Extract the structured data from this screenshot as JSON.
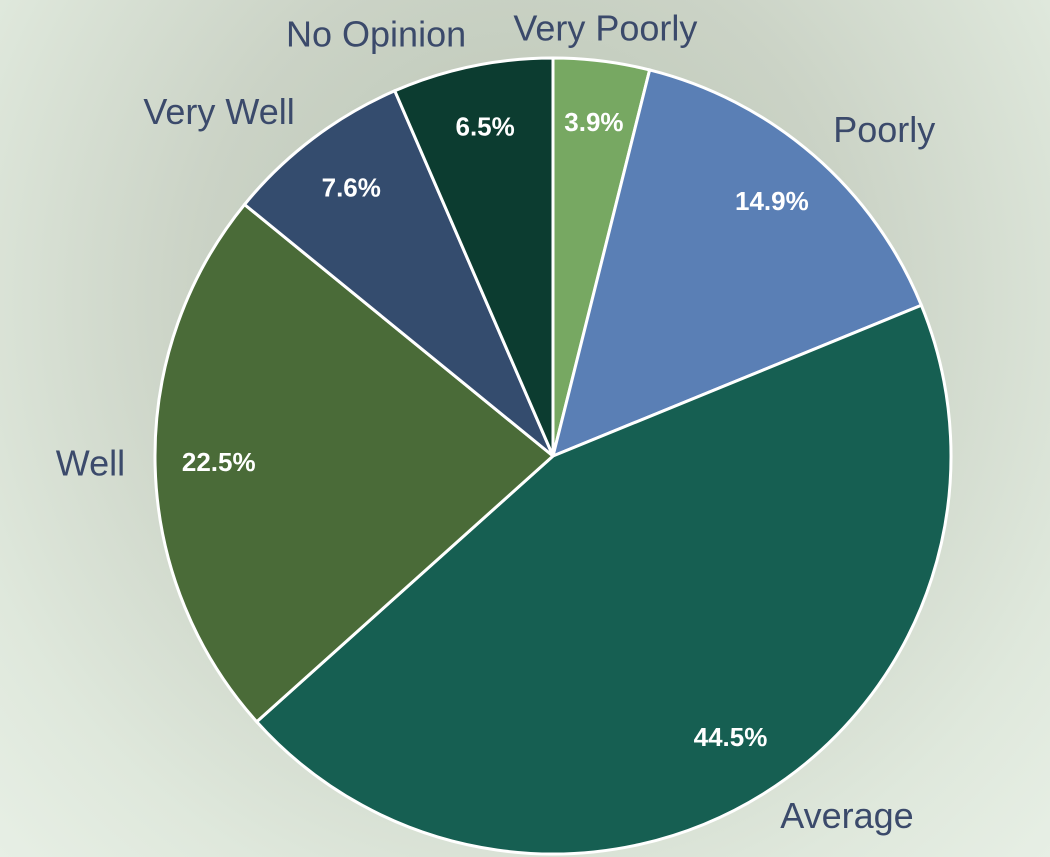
{
  "chart_data": {
    "type": "pie",
    "categories": [
      "Very Poorly",
      "Poorly",
      "Average",
      "Well",
      "Very Well",
      "No Opinion"
    ],
    "values": [
      3.9,
      14.9,
      44.5,
      22.5,
      7.6,
      6.5
    ],
    "value_labels": [
      "3.9%",
      "14.9%",
      "44.5%",
      "22.5%",
      "7.6%",
      "6.5%"
    ],
    "colors": [
      "#77a862",
      "#5a7fb5",
      "#165f52",
      "#4a6b38",
      "#344c6e",
      "#0c3c30"
    ]
  }
}
